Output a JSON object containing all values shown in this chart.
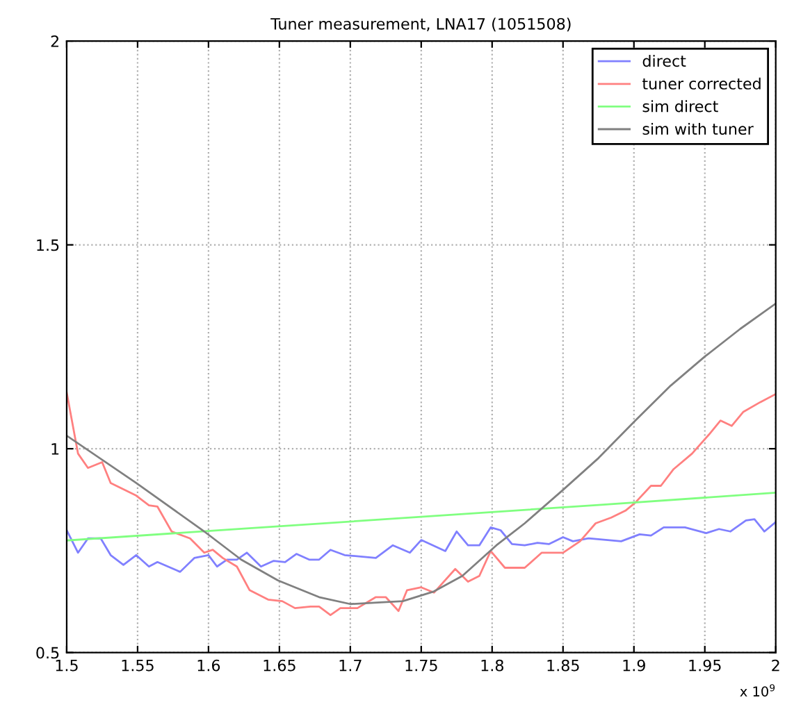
{
  "chart_data": {
    "type": "line",
    "title": "Tuner measurement, LNA17 (1051508)",
    "xlim": [
      1.5,
      2
    ],
    "xticks": [
      1.5,
      1.55,
      1.6,
      1.65,
      1.7,
      1.75,
      1.8,
      1.85,
      1.9,
      1.95,
      2
    ],
    "ylim": [
      0.5,
      2
    ],
    "yticks": [
      0.5,
      1,
      1.5,
      2
    ],
    "grid": true,
    "legend": "top right",
    "line_style": "solid",
    "marker": "none",
    "annotations": [
      "x 10$^{9}$"
    ],
    "series": [
      {
        "name": "direct",
        "color": "#8080ff",
        "x": [
          1.5,
          1.508,
          1.515,
          1.524,
          1.531,
          1.54,
          1.549,
          1.558,
          1.564,
          1.58,
          1.59,
          1.6,
          1.606,
          1.613,
          1.62,
          1.627,
          1.637,
          1.646,
          1.654,
          1.662,
          1.671,
          1.678,
          1.686,
          1.696,
          1.718,
          1.73,
          1.742,
          1.75,
          1.767,
          1.775,
          1.783,
          1.791,
          1.799,
          1.806,
          1.814,
          1.823,
          1.832,
          1.84,
          1.85,
          1.857,
          1.868,
          1.891,
          1.904,
          1.912,
          1.921,
          1.936,
          1.951,
          1.96,
          1.968,
          1.979,
          1.985,
          1.992,
          2
        ],
        "values": [
          0.8,
          0.745,
          0.78,
          0.78,
          0.739,
          0.715,
          0.739,
          0.711,
          0.722,
          0.698,
          0.732,
          0.739,
          0.711,
          0.728,
          0.728,
          0.745,
          0.711,
          0.725,
          0.722,
          0.742,
          0.728,
          0.728,
          0.752,
          0.739,
          0.732,
          0.763,
          0.745,
          0.776,
          0.749,
          0.797,
          0.763,
          0.763,
          0.807,
          0.8,
          0.766,
          0.763,
          0.769,
          0.766,
          0.783,
          0.773,
          0.78,
          0.773,
          0.79,
          0.787,
          0.807,
          0.807,
          0.793,
          0.803,
          0.797,
          0.824,
          0.827,
          0.797,
          0.82
        ]
      },
      {
        "name": "tuner corrected",
        "color": "#ff8080",
        "x": [
          1.5,
          1.508,
          1.515,
          1.525,
          1.531,
          1.549,
          1.558,
          1.564,
          1.574,
          1.587,
          1.597,
          1.603,
          1.61,
          1.62,
          1.629,
          1.642,
          1.652,
          1.661,
          1.672,
          1.678,
          1.686,
          1.693,
          1.705,
          1.718,
          1.725,
          1.734,
          1.74,
          1.75,
          1.759,
          1.774,
          1.783,
          1.791,
          1.799,
          1.809,
          1.823,
          1.835,
          1.85,
          1.862,
          1.873,
          1.884,
          1.894,
          1.901,
          1.912,
          1.919,
          1.928,
          1.941,
          1.953,
          1.961,
          1.969,
          1.977,
          1.989,
          2
        ],
        "values": [
          1.138,
          0.988,
          0.953,
          0.967,
          0.916,
          0.885,
          0.861,
          0.858,
          0.797,
          0.78,
          0.745,
          0.752,
          0.732,
          0.711,
          0.653,
          0.63,
          0.626,
          0.609,
          0.613,
          0.613,
          0.592,
          0.609,
          0.609,
          0.636,
          0.636,
          0.602,
          0.653,
          0.66,
          0.647,
          0.705,
          0.674,
          0.688,
          0.749,
          0.708,
          0.708,
          0.745,
          0.745,
          0.773,
          0.817,
          0.831,
          0.848,
          0.868,
          0.909,
          0.909,
          0.95,
          0.988,
          1.035,
          1.069,
          1.056,
          1.09,
          1.114,
          1.134
        ]
      },
      {
        "name": "sim direct",
        "color": "#80ff80",
        "x": [
          1.5,
          1.625,
          1.75,
          1.875,
          2
        ],
        "values": [
          0.775,
          0.804,
          0.833,
          0.862,
          0.892
        ]
      },
      {
        "name": "sim with tuner",
        "color": "#808080",
        "x": [
          1.5,
          1.549,
          1.597,
          1.623,
          1.649,
          1.678,
          1.7,
          1.721,
          1.737,
          1.759,
          1.779,
          1.803,
          1.823,
          1.85,
          1.875,
          1.901,
          1.926,
          1.95,
          1.975,
          2
        ],
        "values": [
          1.032,
          0.916,
          0.797,
          0.728,
          0.677,
          0.636,
          0.619,
          0.623,
          0.626,
          0.65,
          0.688,
          0.763,
          0.817,
          0.899,
          0.977,
          1.069,
          1.155,
          1.226,
          1.294,
          1.356
        ]
      }
    ]
  }
}
